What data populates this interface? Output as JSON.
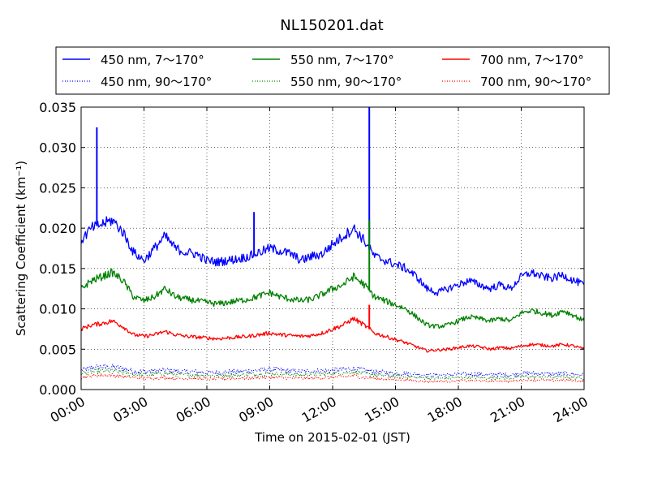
{
  "chart_data": {
    "type": "line",
    "title": "NL150201.dat",
    "xlabel": "Time on 2015-02-01 (JST)",
    "ylabel": "Scattering Coefficient (km⁻¹)",
    "xlim": [
      "00:00",
      "24:00"
    ],
    "ylim": [
      0,
      0.035
    ],
    "grid": true,
    "legend_position": "above plot",
    "x_ticks": [
      "00:00",
      "03:00",
      "06:00",
      "09:00",
      "12:00",
      "15:00",
      "18:00",
      "21:00",
      "24:00"
    ],
    "y_ticks": [
      "0.000",
      "0.005",
      "0.010",
      "0.015",
      "0.020",
      "0.025",
      "0.030",
      "0.035"
    ],
    "x": [
      "00:00",
      "00:30",
      "01:00",
      "01:30",
      "02:00",
      "02:30",
      "03:00",
      "03:30",
      "04:00",
      "04:30",
      "05:00",
      "05:30",
      "06:00",
      "06:30",
      "07:00",
      "07:30",
      "08:00",
      "08:30",
      "09:00",
      "09:30",
      "10:00",
      "10:30",
      "11:00",
      "11:30",
      "12:00",
      "12:30",
      "13:00",
      "13:30",
      "14:00",
      "14:30",
      "15:00",
      "15:30",
      "16:00",
      "16:30",
      "17:00",
      "17:30",
      "18:00",
      "18:30",
      "19:00",
      "19:30",
      "20:00",
      "20:30",
      "21:00",
      "21:30",
      "22:00",
      "22:30",
      "23:00",
      "23:30",
      "24:00"
    ],
    "series": [
      {
        "name": "450 nm, 7～170°",
        "color": "#0000ff",
        "style": "solid",
        "values": [
          0.0185,
          0.02,
          0.0205,
          0.021,
          0.0195,
          0.017,
          0.016,
          0.0175,
          0.019,
          0.0175,
          0.017,
          0.0168,
          0.016,
          0.0158,
          0.016,
          0.0162,
          0.0165,
          0.017,
          0.0175,
          0.0172,
          0.0168,
          0.016,
          0.0165,
          0.0168,
          0.018,
          0.019,
          0.02,
          0.0185,
          0.0165,
          0.016,
          0.0155,
          0.015,
          0.014,
          0.0125,
          0.012,
          0.0125,
          0.013,
          0.0135,
          0.013,
          0.0125,
          0.013,
          0.0125,
          0.014,
          0.0145,
          0.014,
          0.0138,
          0.0142,
          0.0135,
          0.013
        ]
      },
      {
        "name": "550 nm, 7～170°",
        "color": "#008000",
        "style": "solid",
        "values": [
          0.0125,
          0.0135,
          0.014,
          0.0145,
          0.0135,
          0.0115,
          0.011,
          0.0115,
          0.0125,
          0.0115,
          0.0112,
          0.011,
          0.0108,
          0.0106,
          0.0108,
          0.011,
          0.0112,
          0.0116,
          0.012,
          0.0115,
          0.0112,
          0.011,
          0.0112,
          0.0118,
          0.0125,
          0.013,
          0.014,
          0.013,
          0.0115,
          0.011,
          0.0105,
          0.01,
          0.009,
          0.008,
          0.0078,
          0.008,
          0.0085,
          0.009,
          0.0088,
          0.0085,
          0.0088,
          0.0085,
          0.0095,
          0.0098,
          0.0095,
          0.0092,
          0.0098,
          0.0092,
          0.0085
        ]
      },
      {
        "name": "700 nm, 7～170°",
        "color": "#ff0000",
        "style": "solid",
        "values": [
          0.0075,
          0.008,
          0.0082,
          0.0085,
          0.0078,
          0.0068,
          0.0066,
          0.0068,
          0.0072,
          0.0068,
          0.0066,
          0.0065,
          0.0064,
          0.0063,
          0.0064,
          0.0065,
          0.0066,
          0.0068,
          0.007,
          0.0068,
          0.0067,
          0.0066,
          0.0067,
          0.007,
          0.0075,
          0.008,
          0.0088,
          0.008,
          0.007,
          0.0066,
          0.0062,
          0.0058,
          0.0053,
          0.0048,
          0.0049,
          0.005,
          0.0052,
          0.0054,
          0.0053,
          0.005,
          0.0052,
          0.0051,
          0.0054,
          0.0056,
          0.0055,
          0.0054,
          0.0056,
          0.0054,
          0.005
        ]
      },
      {
        "name": "450 nm, 90～170°",
        "color": "#0000ff",
        "style": "dotted",
        "values": [
          0.0024,
          0.0027,
          0.0028,
          0.0028,
          0.0026,
          0.0023,
          0.0022,
          0.0023,
          0.0024,
          0.0023,
          0.0022,
          0.0022,
          0.0021,
          0.0021,
          0.0022,
          0.0022,
          0.0023,
          0.0024,
          0.0025,
          0.0024,
          0.0023,
          0.0022,
          0.0023,
          0.0023,
          0.0024,
          0.0025,
          0.0026,
          0.0024,
          0.0022,
          0.0021,
          0.002,
          0.002,
          0.0019,
          0.0018,
          0.0018,
          0.0018,
          0.0019,
          0.0019,
          0.0019,
          0.0018,
          0.0019,
          0.0018,
          0.002,
          0.002,
          0.002,
          0.0019,
          0.002,
          0.0019,
          0.0018
        ]
      },
      {
        "name": "550 nm, 90～170°",
        "color": "#008000",
        "style": "dotted",
        "values": [
          0.002,
          0.0022,
          0.0023,
          0.0023,
          0.0021,
          0.0019,
          0.0018,
          0.0019,
          0.002,
          0.0019,
          0.0018,
          0.0018,
          0.0018,
          0.0017,
          0.0018,
          0.0018,
          0.0019,
          0.0019,
          0.002,
          0.0019,
          0.0019,
          0.0018,
          0.0019,
          0.0019,
          0.002,
          0.0021,
          0.0022,
          0.002,
          0.0018,
          0.0017,
          0.0017,
          0.0016,
          0.0015,
          0.0014,
          0.0014,
          0.0014,
          0.0015,
          0.0015,
          0.0015,
          0.0014,
          0.0015,
          0.0014,
          0.0016,
          0.0016,
          0.0016,
          0.0015,
          0.0016,
          0.0015,
          0.0014
        ]
      },
      {
        "name": "700 nm, 90～170°",
        "color": "#ff0000",
        "style": "dotted",
        "values": [
          0.0015,
          0.0017,
          0.0018,
          0.0018,
          0.0016,
          0.0015,
          0.0014,
          0.0014,
          0.0015,
          0.0014,
          0.0014,
          0.0014,
          0.0013,
          0.0013,
          0.0014,
          0.0014,
          0.0014,
          0.0015,
          0.0015,
          0.0015,
          0.0014,
          0.0014,
          0.0014,
          0.0015,
          0.0015,
          0.0016,
          0.0017,
          0.0015,
          0.0014,
          0.0013,
          0.0013,
          0.0012,
          0.0011,
          0.001,
          0.001,
          0.001,
          0.0011,
          0.0011,
          0.0011,
          0.001,
          0.0011,
          0.001,
          0.0012,
          0.0012,
          0.0012,
          0.0011,
          0.0012,
          0.0011,
          0.001
        ]
      }
    ],
    "spikes": [
      {
        "series": "450 nm, 7～170°",
        "x": "00:45",
        "value": 0.0325
      },
      {
        "series": "450 nm, 7～170°",
        "x": "08:15",
        "value": 0.022
      },
      {
        "series": "450 nm, 7～170°",
        "x": "13:45",
        "value": 0.035
      },
      {
        "series": "550 nm, 7～170°",
        "x": "13:45",
        "value": 0.021
      },
      {
        "series": "700 nm, 7～170°",
        "x": "13:45",
        "value": 0.0105
      }
    ]
  }
}
